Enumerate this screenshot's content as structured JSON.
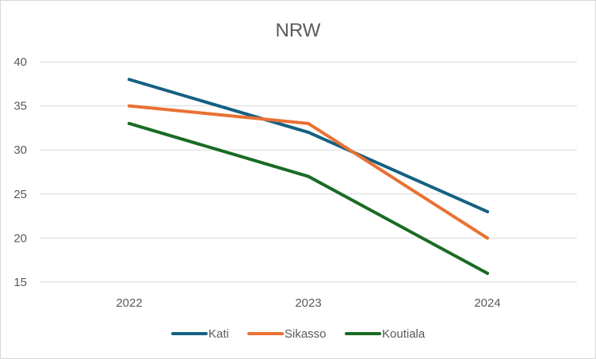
{
  "chart_data": {
    "type": "line",
    "title": "NRW",
    "xlabel": "",
    "ylabel": "",
    "categories": [
      "2022",
      "2023",
      "2024"
    ],
    "ylim": [
      15,
      40
    ],
    "yticks": [
      15,
      20,
      25,
      30,
      35,
      40
    ],
    "grid": true,
    "legend_position": "bottom",
    "series": [
      {
        "name": "Kati",
        "values": [
          38,
          32,
          23
        ],
        "color": "#156082"
      },
      {
        "name": "Sikasso",
        "values": [
          35,
          33,
          20
        ],
        "color": "#E97132"
      },
      {
        "name": "Koutiala",
        "values": [
          33,
          27,
          16
        ],
        "color": "#196B24"
      }
    ]
  }
}
